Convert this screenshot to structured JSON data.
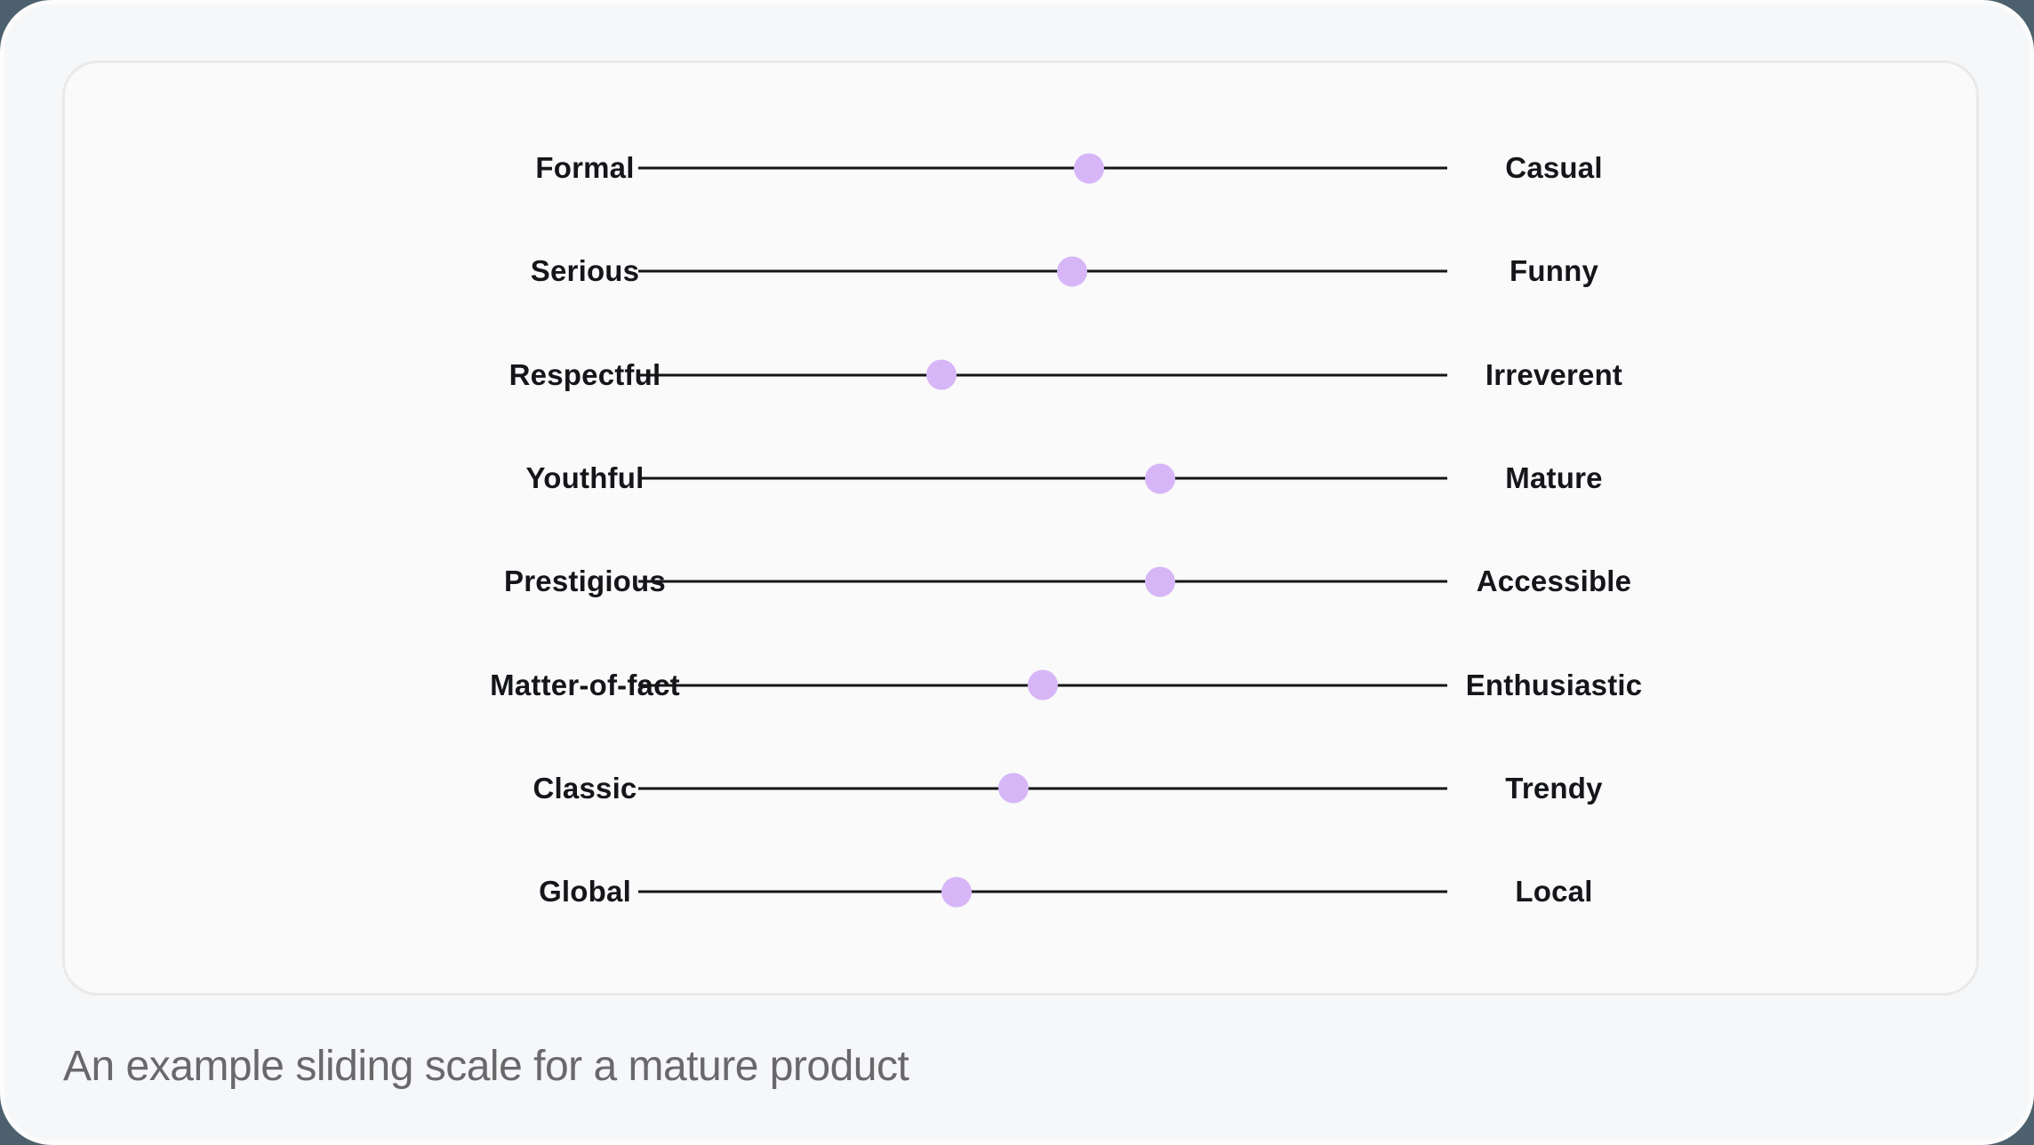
{
  "card": {
    "caption": "An example sliding scale for a mature product"
  },
  "sliders": {
    "rows": [
      {
        "left": "Formal",
        "right": "Casual",
        "value": 55.7
      },
      {
        "left": "Serious",
        "right": "Funny",
        "value": 53.6
      },
      {
        "left": "Respectful",
        "right": "Irreverent",
        "value": 37.5
      },
      {
        "left": "Youthful",
        "right": "Mature",
        "value": 64.5
      },
      {
        "left": "Prestigious",
        "right": "Accessible",
        "value": 64.5
      },
      {
        "left": "Matter-of-fact",
        "right": "Enthusiastic",
        "value": 50.0
      },
      {
        "left": "Classic",
        "right": "Trendy",
        "value": 46.4
      },
      {
        "left": "Global",
        "right": "Local",
        "value": 39.3
      }
    ]
  },
  "colors": {
    "page_background": "#4c616d",
    "panel_background": "#f6f7f8",
    "panel_border": "#fcfcfd",
    "card_background": "#fafafa",
    "card_border": "#e9e9ea",
    "track": "#151517",
    "handle": "#d6b6f7",
    "label_text": "#14161a",
    "caption_text": "#69696b"
  }
}
